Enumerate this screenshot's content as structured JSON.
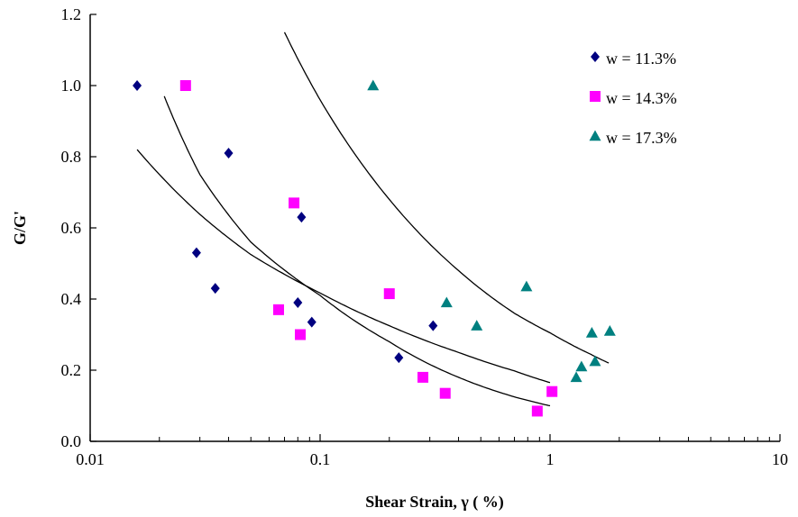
{
  "chart_data": {
    "type": "scatter",
    "xlabel": "Shear Strain, γ ( %)",
    "ylabel": "G/G'",
    "xscale": "log",
    "xlim": [
      0.01,
      10
    ],
    "ylim": [
      0,
      1.2
    ],
    "xticks": [
      0.01,
      0.1,
      1,
      10
    ],
    "xtick_labels": [
      "0.01",
      "0.1",
      "1",
      "10"
    ],
    "yticks": [
      0,
      0.2,
      0.4,
      0.6,
      0.8,
      1.0,
      1.2
    ],
    "ytick_labels": [
      "0.0",
      "0.2",
      "0.4",
      "0.6",
      "0.8",
      "1.0",
      "1.2"
    ],
    "grid": false,
    "legend_position": "top-right",
    "series": [
      {
        "name": "w = 11.3%",
        "marker": "diamond",
        "color": "#000080",
        "points": [
          [
            0.016,
            1.0
          ],
          [
            0.029,
            0.53
          ],
          [
            0.035,
            0.43
          ],
          [
            0.04,
            0.81
          ],
          [
            0.08,
            0.39
          ],
          [
            0.083,
            0.63
          ],
          [
            0.092,
            0.335
          ],
          [
            0.22,
            0.235
          ],
          [
            0.31,
            0.325
          ]
        ]
      },
      {
        "name": "w = 14.3%",
        "marker": "square",
        "color": "#ff00ff",
        "points": [
          [
            0.026,
            1.0
          ],
          [
            0.066,
            0.37
          ],
          [
            0.077,
            0.67
          ],
          [
            0.082,
            0.3
          ],
          [
            0.2,
            0.415
          ],
          [
            0.28,
            0.18
          ],
          [
            0.35,
            0.135
          ],
          [
            0.88,
            0.085
          ],
          [
            1.02,
            0.14
          ]
        ]
      },
      {
        "name": "w = 17.3%",
        "marker": "triangle",
        "color": "#008080",
        "points": [
          [
            0.17,
            1.0
          ],
          [
            0.355,
            0.39
          ],
          [
            0.48,
            0.325
          ],
          [
            0.79,
            0.435
          ],
          [
            1.3,
            0.18
          ],
          [
            1.37,
            0.21
          ],
          [
            1.52,
            0.305
          ],
          [
            1.57,
            0.225
          ],
          [
            1.82,
            0.31
          ]
        ]
      }
    ],
    "fit_curves": [
      {
        "x": [
          0.016,
          0.03,
          0.05,
          0.1,
          0.2,
          0.4,
          0.7,
          1.0
        ],
        "y": [
          0.82,
          0.638,
          0.525,
          0.417,
          0.325,
          0.25,
          0.198,
          0.165
        ]
      },
      {
        "x": [
          0.021,
          0.03,
          0.05,
          0.1,
          0.2,
          0.4,
          0.7,
          1.0
        ],
        "y": [
          0.97,
          0.75,
          0.56,
          0.41,
          0.28,
          0.18,
          0.125,
          0.1
        ]
      },
      {
        "x": [
          0.07,
          0.1,
          0.2,
          0.4,
          0.7,
          1.0,
          1.5,
          1.8
        ],
        "y": [
          1.15,
          0.96,
          0.68,
          0.48,
          0.36,
          0.305,
          0.245,
          0.22
        ]
      }
    ]
  }
}
